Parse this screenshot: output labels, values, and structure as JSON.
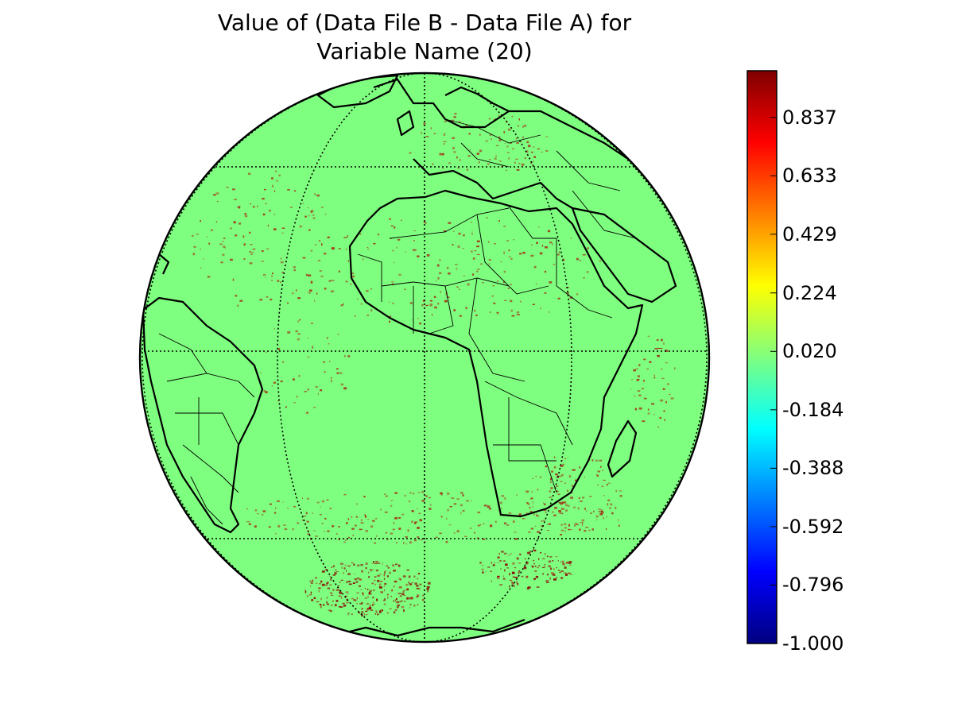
{
  "figure": {
    "title_lines": [
      "Value of (Data File B - Data File A) for",
      "Variable Name (20)"
    ]
  },
  "chart_data": {
    "type": "heatmap",
    "projection": "orthographic",
    "title": "Value of (Data File B - Data File A) for Variable Name (20)",
    "field": "difference (Data File B - Data File A)",
    "background_value": 0.02,
    "value_range": [
      -1.0,
      1.0
    ],
    "colormap": "jet",
    "colorbar": {
      "placement": "right",
      "ticks": [
        0.837,
        0.633,
        0.429,
        0.224,
        0.02,
        -0.184,
        -0.388,
        -0.592,
        -0.796,
        -1.0
      ],
      "tick_labels": [
        "0.837",
        "0.633",
        "0.429",
        "0.224",
        "0.020",
        "-0.184",
        "-0.388",
        "-0.592",
        "-0.796",
        "-1.000"
      ],
      "colors": [
        "#00007f",
        "#0000ff",
        "#007fff",
        "#00ffff",
        "#7fff7f",
        "#ffff00",
        "#ff7f00",
        "#ff0000",
        "#7f0000"
      ]
    },
    "field_color": "#7fff7f",
    "anomaly_color": "#a03a1c",
    "strong_anomaly_color": "#8b0000",
    "gridlines": "dotted",
    "coastlines": true,
    "country_borders": true
  }
}
